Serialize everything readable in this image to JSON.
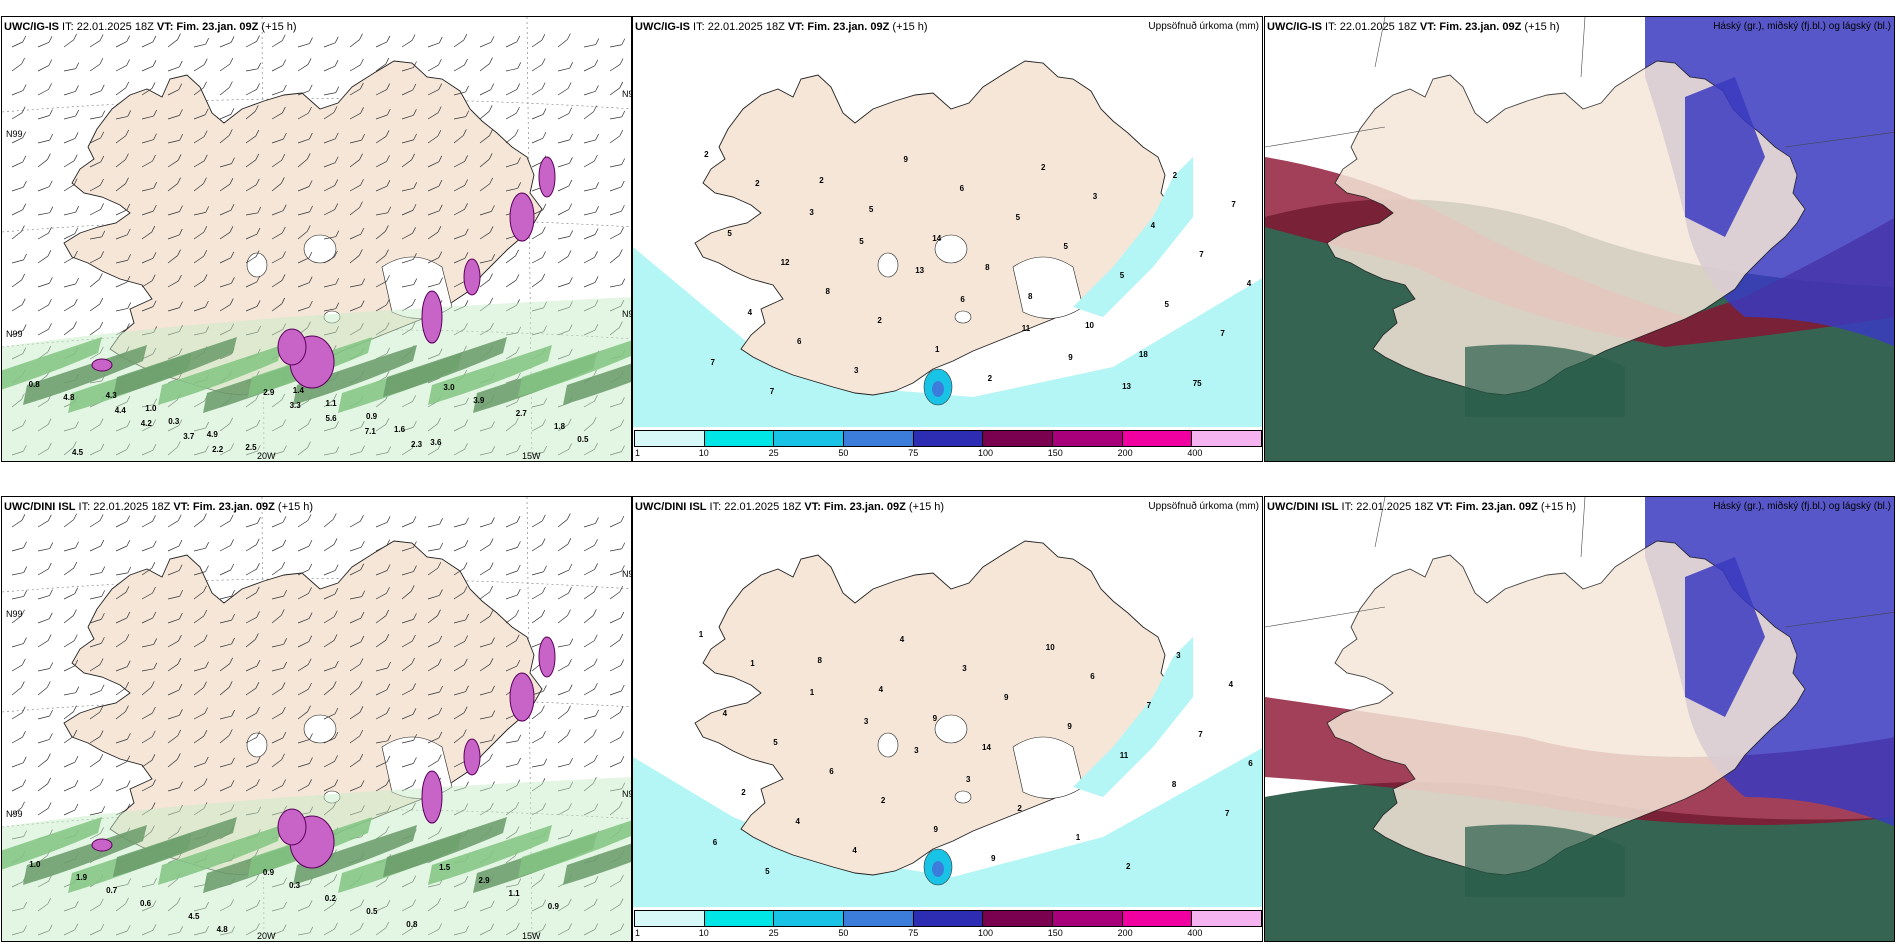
{
  "panels": [
    {
      "model": "UWC/IG-IS",
      "it": "IT: 22.01.2025 18Z",
      "vt": "VT: Fim. 23.jan. 09Z",
      "lead": "(+15 h)",
      "right_label": "",
      "kind": "wind",
      "gridlabels": [
        "N99",
        "N99",
        "N99",
        "N99",
        "20W",
        "15W"
      ]
    },
    {
      "model": "UWC/IG-IS",
      "it": "IT: 22.01.2025 18Z",
      "vt": "VT: Fim. 23.jan. 09Z",
      "lead": "(+15 h)",
      "right_label": "Uppsöfnuð úrkoma (mm)",
      "kind": "precip"
    },
    {
      "model": "UWC/IG-IS",
      "it": "IT: 22.01.2025 18Z",
      "vt": "VT: Fim. 23.jan. 09Z",
      "lead": "(+15 h)",
      "right_label": "Háský (gr.), miðský (fj.bl.) og lágský (bl.)",
      "kind": "cloud"
    },
    {
      "model": "UWC/DINI ISL",
      "it": "IT: 22.01.2025 18Z",
      "vt": "VT: Fim. 23.jan. 09Z",
      "lead": "(+15 h)",
      "right_label": "",
      "kind": "wind",
      "gridlabels": [
        "N99",
        "N99",
        "N99",
        "N99",
        "20W",
        "15W"
      ]
    },
    {
      "model": "UWC/DINI ISL",
      "it": "IT: 22.01.2025 18Z",
      "vt": "VT: Fim. 23.jan. 09Z",
      "lead": "(+15 h)",
      "right_label": "Uppsöfnuð úrkoma (mm)",
      "kind": "precip"
    },
    {
      "model": "UWC/DINI ISL",
      "it": "IT: 22.01.2025 18Z",
      "vt": "VT: Fim. 23.jan. 09Z",
      "lead": "(+15 h)",
      "right_label": "Háský (gr.), miðský (fj.bl.) og lágský (bl.)",
      "kind": "cloud"
    }
  ],
  "precip_legend": {
    "ticks": [
      "1",
      "10",
      "25",
      "50",
      "75",
      "100",
      "150",
      "200",
      "400"
    ],
    "colors": [
      "#d8f8f8",
      "#00e6e6",
      "#19c3e6",
      "#3c7ddc",
      "#2d2db4",
      "#7a0050",
      "#a8007a",
      "#f000a0",
      "#f5b4f0"
    ]
  },
  "colors": {
    "land": "#f5e6d8",
    "coast": "#222222",
    "sea": "#ffffff",
    "precip_light": "#b4f5f5",
    "wind_green": "#3c9c3c",
    "wind_dark": "#0a4a0a",
    "wind_magenta": "#c864c8",
    "cloud_high": "#2a5c4a",
    "cloud_mid": "#8b1030",
    "cloud_low": "#3a3ac0"
  },
  "precip_top_values": [
    "2",
    "2",
    "3",
    "5",
    "13",
    "6",
    "11",
    "9",
    "13",
    "2",
    "7",
    "5",
    "12",
    "8",
    "2",
    "1",
    "2",
    "2",
    "3",
    "4",
    "7",
    "4",
    "4",
    "6",
    "3",
    "9",
    "6",
    "5",
    "5",
    "5",
    "5",
    "7",
    "7",
    "7",
    "2",
    "5",
    "14",
    "8",
    "8",
    "10",
    "18",
    "75"
  ],
  "precip_bottom_values": [
    "1",
    "1",
    "1",
    "3",
    "3",
    "3",
    "2",
    "1",
    "2",
    "3",
    "4",
    "4",
    "5",
    "6",
    "2",
    "9",
    "9",
    "10",
    "6",
    "7",
    "7",
    "6",
    "2",
    "4",
    "4",
    "4",
    "3",
    "9",
    "9",
    "11",
    "8",
    "7",
    "6",
    "5",
    "8",
    "4",
    "9",
    "14"
  ],
  "wind_top_values": [
    "0.8",
    "4.8",
    "4.4",
    "4.2",
    "3.7",
    "2.2",
    "2.9",
    "3.3",
    "5.6",
    "7.1",
    "2.3",
    "3.0",
    "3.9",
    "2.7",
    "1.8",
    "0.5",
    "4.5",
    "4.3",
    "1.0",
    "0.3",
    "4.9",
    "2.5",
    "1.4",
    "1.1",
    "0.9",
    "1.6",
    "3.6"
  ],
  "wind_bottom_values": [
    "1.0",
    "1.9",
    "0.7",
    "0.6",
    "4.5",
    "4.8",
    "0.9",
    "0.3",
    "0.2",
    "0.5",
    "0.8",
    "1.5",
    "2.9",
    "1.1",
    "0.9"
  ]
}
